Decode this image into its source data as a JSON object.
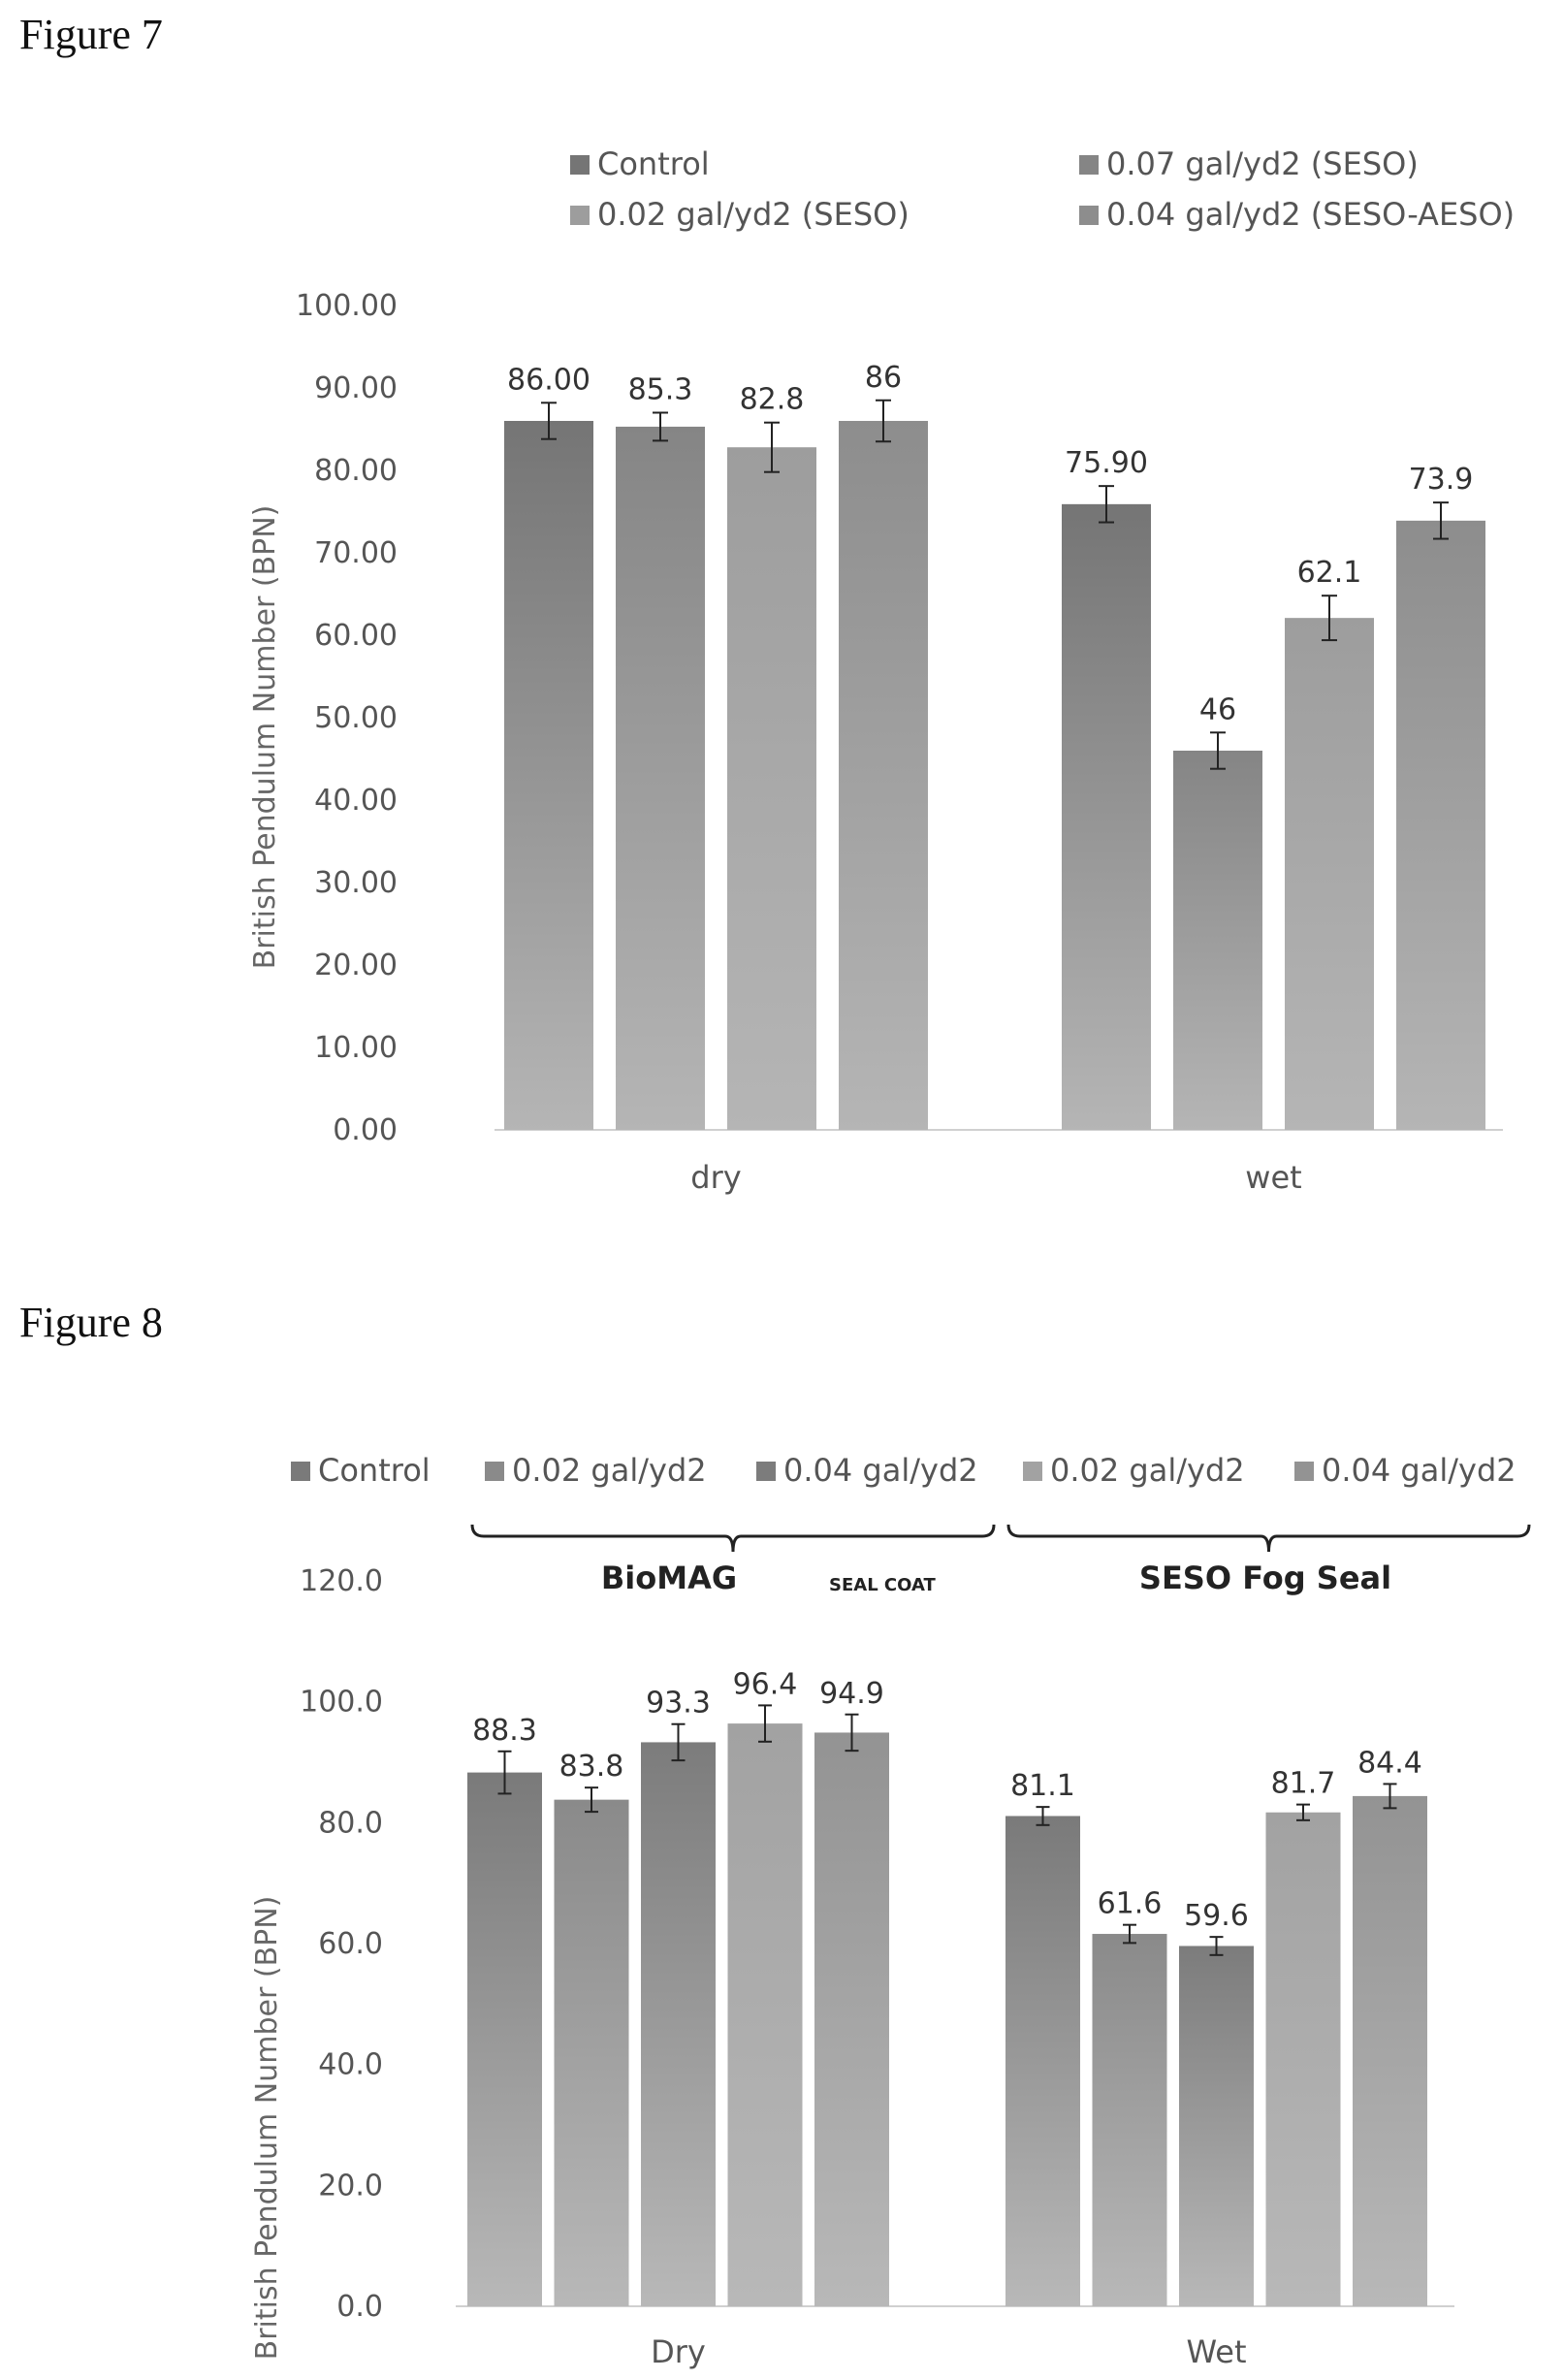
{
  "figure7": {
    "label": "Figure 7",
    "chart_data": {
      "type": "bar",
      "title": "",
      "ylabel": "British Pendulum Number (BPN)",
      "categories": [
        "dry",
        "wet"
      ],
      "ylim": [
        0,
        100
      ],
      "yticks": [
        "0.00",
        "10.00",
        "20.00",
        "30.00",
        "40.00",
        "50.00",
        "60.00",
        "70.00",
        "80.00",
        "90.00",
        "100.00"
      ],
      "legend_placement": "top",
      "series": [
        {
          "name": "Control",
          "values": [
            86.0,
            75.9
          ],
          "labels": [
            "86.00",
            "75.90"
          ],
          "errors": [
            2.2,
            2.2
          ],
          "color": "#757575"
        },
        {
          "name": "0.07 gal/yd2 (SESO)",
          "values": [
            85.3,
            46.0
          ],
          "labels": [
            "85.3",
            "46"
          ],
          "errors": [
            1.7,
            2.2
          ],
          "color": "#858585"
        },
        {
          "name": "0.02 gal/yd2 (SESO)",
          "values": [
            82.8,
            62.1
          ],
          "labels": [
            "82.8",
            "62.1"
          ],
          "errors": [
            3.0,
            2.7
          ],
          "color": "#9d9d9d"
        },
        {
          "name": "0.04 gal/yd2 (SESO-AESO)",
          "values": [
            86.0,
            73.9
          ],
          "labels": [
            "86",
            "73.9"
          ],
          "errors": [
            2.5,
            2.2
          ],
          "color": "#8d8d8d"
        }
      ]
    }
  },
  "figure8": {
    "label": "Figure 8",
    "chart_data": {
      "type": "bar",
      "title": "",
      "ylabel": "British Pendulum Number (BPN)",
      "categories": [
        "Dry",
        "Wet"
      ],
      "ylim": [
        0,
        120
      ],
      "yticks": [
        "0.0",
        "20.0",
        "40.0",
        "60.0",
        "80.0",
        "100.0",
        "120.0"
      ],
      "legend_placement": "top",
      "groups": [
        {
          "name": "BioMAG",
          "subscript": "SEAL COAT"
        },
        {
          "name": "SESO Fog Seal",
          "subscript": ""
        }
      ],
      "series": [
        {
          "name": "Control",
          "values": [
            88.3,
            81.1
          ],
          "labels": [
            "88.3",
            "81.1"
          ],
          "errors": [
            3.5,
            1.5
          ],
          "color": "#7a7a7a"
        },
        {
          "name": "0.02 gal/yd2",
          "values": [
            83.8,
            61.6
          ],
          "labels": [
            "83.8",
            "61.6"
          ],
          "errors": [
            2.0,
            1.5
          ],
          "color": "#8a8a8a"
        },
        {
          "name": "0.04 gal/yd2",
          "values": [
            93.3,
            59.6
          ],
          "labels": [
            "93.3",
            "59.6"
          ],
          "errors": [
            3.0,
            1.5
          ],
          "color": "#7c7c7c"
        },
        {
          "name": "0.02 gal/yd2",
          "values": [
            96.4,
            81.7
          ],
          "labels": [
            "96.4",
            "81.7"
          ],
          "errors": [
            3.0,
            1.3
          ],
          "color": "#a2a2a2"
        },
        {
          "name": "0.04 gal/yd2",
          "values": [
            94.9,
            84.4
          ],
          "labels": [
            "94.9",
            "84.4"
          ],
          "errors": [
            3.0,
            2.0
          ],
          "color": "#939393"
        }
      ]
    }
  }
}
